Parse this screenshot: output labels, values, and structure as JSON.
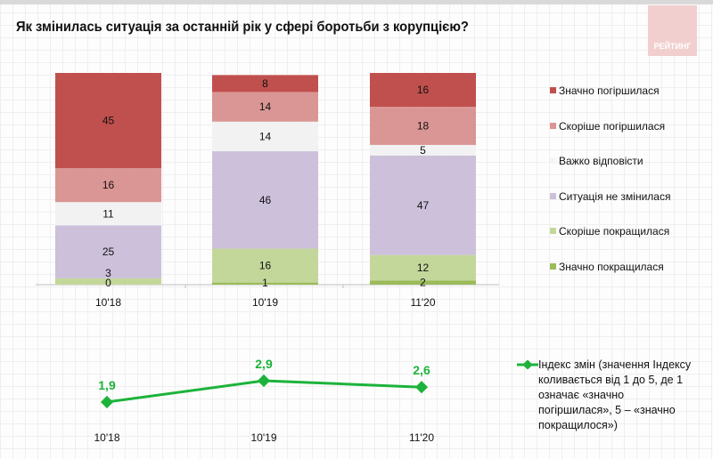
{
  "title": "Як змінилась ситуація за останній рік у сфері боротьби з корупцією?",
  "logo_text": "РЕЙТИНГ",
  "chart_data": [
    {
      "type": "bar",
      "stacked": true,
      "categories": [
        "10'18",
        "10'19",
        "11'20"
      ],
      "ylim": [
        0,
        100
      ],
      "legend_position": "right",
      "series": [
        {
          "name": "Значно погіршилася",
          "color": "#c0504d",
          "values": [
            45,
            8,
            16
          ]
        },
        {
          "name": "Скоріше погіршилася",
          "color": "#da9694",
          "values": [
            16,
            14,
            18
          ]
        },
        {
          "name": "Важко відповісти",
          "color": "#f2f2f2",
          "values": [
            11,
            14,
            5
          ]
        },
        {
          "name": "Ситуація не змінилася",
          "color": "#ccc0da",
          "values": [
            25,
            46,
            47
          ]
        },
        {
          "name": "Скоріше покращилася",
          "color": "#c4d79b",
          "values": [
            3,
            16,
            12
          ]
        },
        {
          "name": "Значно покращилася",
          "color": "#9bbb59",
          "values": [
            0,
            1,
            2
          ]
        }
      ]
    },
    {
      "type": "line",
      "categories": [
        "10'18",
        "10'19",
        "11'20"
      ],
      "series": [
        {
          "name": "Індекс змін (значення Індексу коливається від 1 до 5, де 1 означає «значно погіршилася», 5 – «значно покращилося»)",
          "color": "#1db33b",
          "values": [
            1.9,
            2.9,
            2.6
          ],
          "labels": [
            "1,9",
            "2,9",
            "2,6"
          ]
        }
      ]
    }
  ]
}
